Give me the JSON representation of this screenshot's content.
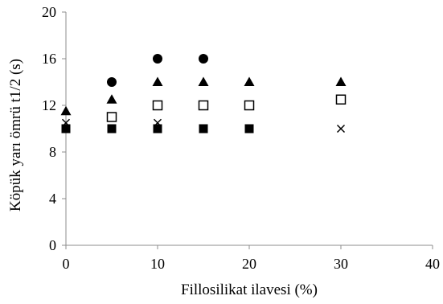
{
  "chart_data": {
    "type": "scatter",
    "xlabel": "Fillosilikat ilavesi (%)",
    "ylabel": "Köpük yarı ömrü t1/2 (s)",
    "xlim": [
      0,
      40
    ],
    "ylim": [
      0,
      20
    ],
    "xticks": [
      "0",
      "10",
      "20",
      "30",
      "40"
    ],
    "yticks": [
      "0",
      "4",
      "8",
      "12",
      "16",
      "20"
    ],
    "grid": false,
    "legend": "none",
    "colors": {
      "axis": "#8c8c8c",
      "marker": "#000000",
      "background": "#ffffff"
    },
    "series": [
      {
        "marker": "circle",
        "filled": true,
        "points": [
          [
            5,
            14
          ],
          [
            10,
            16
          ],
          [
            15,
            16
          ]
        ]
      },
      {
        "marker": "triangle",
        "filled": true,
        "points": [
          [
            0,
            11.5
          ],
          [
            5,
            12.5
          ],
          [
            10,
            14
          ],
          [
            15,
            14
          ],
          [
            20,
            14
          ],
          [
            30,
            14
          ]
        ]
      },
      {
        "marker": "square",
        "filled": false,
        "points": [
          [
            5,
            11
          ],
          [
            10,
            12
          ],
          [
            15,
            12
          ],
          [
            20,
            12
          ],
          [
            30,
            12.5
          ]
        ]
      },
      {
        "marker": "cross",
        "filled": false,
        "points": [
          [
            0,
            10.5
          ],
          [
            10,
            10.5
          ],
          [
            30,
            10
          ]
        ]
      },
      {
        "marker": "square",
        "filled": true,
        "points": [
          [
            0,
            10
          ],
          [
            5,
            10
          ],
          [
            10,
            10
          ],
          [
            15,
            10
          ],
          [
            20,
            10
          ]
        ]
      }
    ]
  }
}
